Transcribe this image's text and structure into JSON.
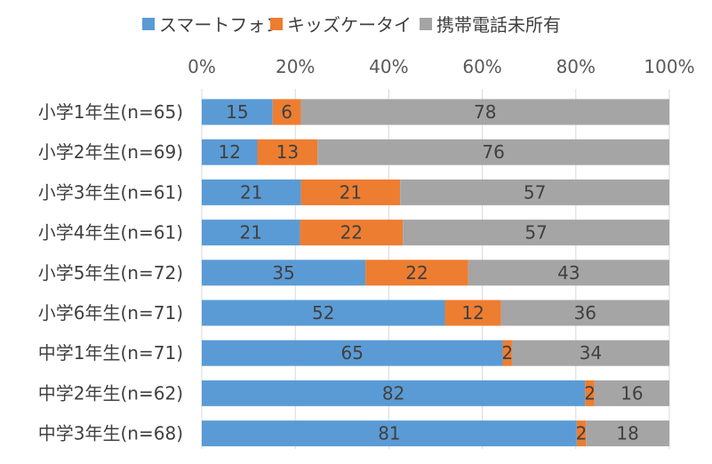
{
  "chart_data": {
    "type": "bar",
    "orientation": "horizontal",
    "stacked": "percent",
    "title": "",
    "xlabel": "",
    "ylabel": "",
    "xlim": [
      0,
      100
    ],
    "ticks": [
      "0%",
      "20%",
      "40%",
      "60%",
      "80%",
      "100%"
    ],
    "tick_values": [
      0,
      20,
      40,
      60,
      80,
      100
    ],
    "legend_position": "top",
    "grid": true,
    "categories": [
      "小学1年生(n=65)",
      "小学2年生(n=69)",
      "小学3年生(n=61)",
      "小学4年生(n=61)",
      "小学5年生(n=72)",
      "小学6年生(n=71)",
      "中学1年生(n=71)",
      "中学2年生(n=62)",
      "中学3年生(n=68)"
    ],
    "series": [
      {
        "name": "スマートフォン",
        "color": "#5b9bd5",
        "values": [
          15,
          12,
          21,
          21,
          35,
          52,
          65,
          82,
          81
        ],
        "labels": [
          "15",
          "12",
          "21",
          "21",
          "35",
          "52",
          "65",
          "82",
          "81"
        ]
      },
      {
        "name": "キッズケータイ",
        "color": "#ed7d31",
        "values": [
          6,
          13,
          21,
          22,
          22,
          12,
          2,
          2,
          2
        ],
        "labels": [
          "6",
          "13",
          "21",
          "22",
          "22",
          "12",
          "2",
          "2",
          "2"
        ]
      },
      {
        "name": "携帯電話未所有",
        "color": "#a5a5a5",
        "values": [
          78,
          76,
          57,
          57,
          43,
          36,
          34,
          16,
          18
        ],
        "labels": [
          "78",
          "76",
          "57",
          "57",
          "43",
          "36",
          "34",
          "16",
          "18"
        ]
      }
    ]
  }
}
